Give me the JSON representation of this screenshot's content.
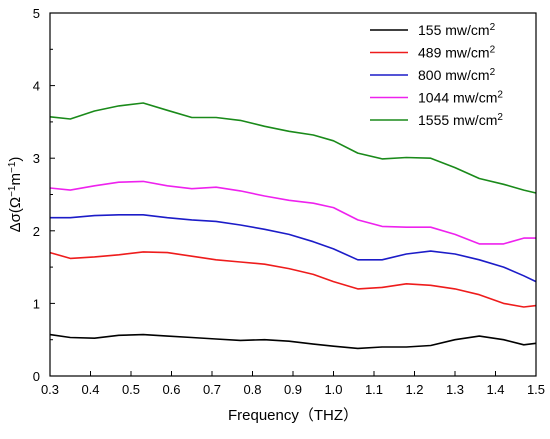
{
  "chart_data": {
    "type": "line",
    "xlabel": "Frequency（THZ）",
    "ylabel_main": "Δσ(Ω",
    "ylabel_sup1": "−1",
    "ylabel_mid": "m",
    "ylabel_sup2": "−1",
    "ylabel_end": ")",
    "xlim": [
      0.3,
      1.5
    ],
    "ylim": [
      0,
      5
    ],
    "xticks": [
      "0.3",
      "0.4",
      "0.5",
      "0.6",
      "0.7",
      "0.8",
      "0.9",
      "1.0",
      "1.1",
      "1.2",
      "1.3",
      "1.4",
      "1.5"
    ],
    "yticks": [
      "0",
      "1",
      "2",
      "3",
      "4",
      "5"
    ],
    "legend_position": "top-right",
    "x": [
      0.3,
      0.35,
      0.41,
      0.47,
      0.53,
      0.59,
      0.65,
      0.71,
      0.77,
      0.83,
      0.89,
      0.95,
      1.0,
      1.06,
      1.12,
      1.18,
      1.24,
      1.3,
      1.36,
      1.42,
      1.47,
      1.5
    ],
    "series": [
      {
        "name": "155 mw/cm",
        "unit_sup": "2",
        "color": "#000000",
        "values": [
          0.57,
          0.53,
          0.52,
          0.56,
          0.57,
          0.55,
          0.53,
          0.51,
          0.49,
          0.5,
          0.48,
          0.44,
          0.41,
          0.38,
          0.4,
          0.4,
          0.42,
          0.5,
          0.55,
          0.5,
          0.43,
          0.45
        ]
      },
      {
        "name": "489 mw/cm",
        "unit_sup": "2",
        "color": "#ee1c1c",
        "values": [
          1.7,
          1.62,
          1.64,
          1.67,
          1.71,
          1.7,
          1.65,
          1.6,
          1.57,
          1.54,
          1.48,
          1.4,
          1.3,
          1.2,
          1.22,
          1.27,
          1.25,
          1.2,
          1.12,
          1.0,
          0.95,
          0.97
        ]
      },
      {
        "name": "800 mw/cm",
        "unit_sup": "2",
        "color": "#1c1cc8",
        "values": [
          2.18,
          2.18,
          2.21,
          2.22,
          2.22,
          2.18,
          2.15,
          2.13,
          2.08,
          2.02,
          1.95,
          1.85,
          1.75,
          1.6,
          1.6,
          1.68,
          1.72,
          1.68,
          1.6,
          1.5,
          1.38,
          1.3
        ]
      },
      {
        "name": "1044 mw/cm",
        "unit_sup": "2",
        "color": "#ee22ee",
        "values": [
          2.59,
          2.56,
          2.62,
          2.67,
          2.68,
          2.62,
          2.58,
          2.6,
          2.55,
          2.48,
          2.42,
          2.38,
          2.32,
          2.15,
          2.06,
          2.05,
          2.05,
          1.95,
          1.82,
          1.82,
          1.9,
          1.9
        ]
      },
      {
        "name": "1555 mw/cm",
        "unit_sup": "2",
        "color": "#1a8a1a",
        "values": [
          3.57,
          3.54,
          3.65,
          3.72,
          3.76,
          3.66,
          3.56,
          3.56,
          3.52,
          3.44,
          3.37,
          3.32,
          3.24,
          3.07,
          2.99,
          3.01,
          3.0,
          2.87,
          2.72,
          2.64,
          2.56,
          2.52
        ]
      }
    ]
  }
}
